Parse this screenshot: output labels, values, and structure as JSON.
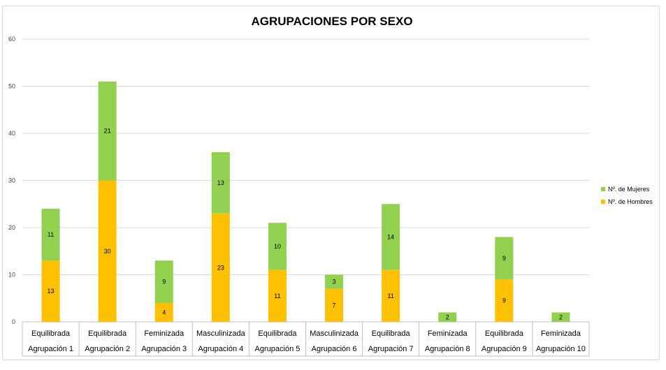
{
  "chart_data": {
    "type": "bar",
    "stacked": true,
    "title": "AGRUPACIONES POR SEXO",
    "xlabel": "",
    "ylabel": "",
    "ylim": [
      0,
      60
    ],
    "yticks": [
      0,
      10,
      20,
      30,
      40,
      50,
      60
    ],
    "grid": true,
    "legend_position": "right",
    "categories": [
      {
        "group": "Equilibrada",
        "name": "Agrupación 1"
      },
      {
        "group": "Equilibrada",
        "name": "Agrupación 2"
      },
      {
        "group": "Feminizada",
        "name": "Agrupación 3"
      },
      {
        "group": "Masculinizada",
        "name": "Agrupación 4"
      },
      {
        "group": "Equilibrada",
        "name": "Agrupación 5"
      },
      {
        "group": "Masculinizada",
        "name": "Agrupación 6"
      },
      {
        "group": "Equilibrada",
        "name": "Agrupación 7"
      },
      {
        "group": "Feminizada",
        "name": "Agrupación 8"
      },
      {
        "group": "Equilibrada",
        "name": "Agrupación 9"
      },
      {
        "group": "Feminizada",
        "name": "Agrupación 10"
      }
    ],
    "series": [
      {
        "name": "Nº. de Hombres",
        "color": "#ffc000",
        "values": [
          13,
          30,
          4,
          23,
          11,
          7,
          11,
          0,
          9,
          0
        ]
      },
      {
        "name": "Nº. de Mujeres",
        "color": "#92d050",
        "values": [
          11,
          21,
          9,
          13,
          10,
          3,
          14,
          2,
          9,
          2
        ]
      }
    ],
    "legend_order": [
      "Nº. de Mujeres",
      "Nº. de Hombres"
    ]
  }
}
